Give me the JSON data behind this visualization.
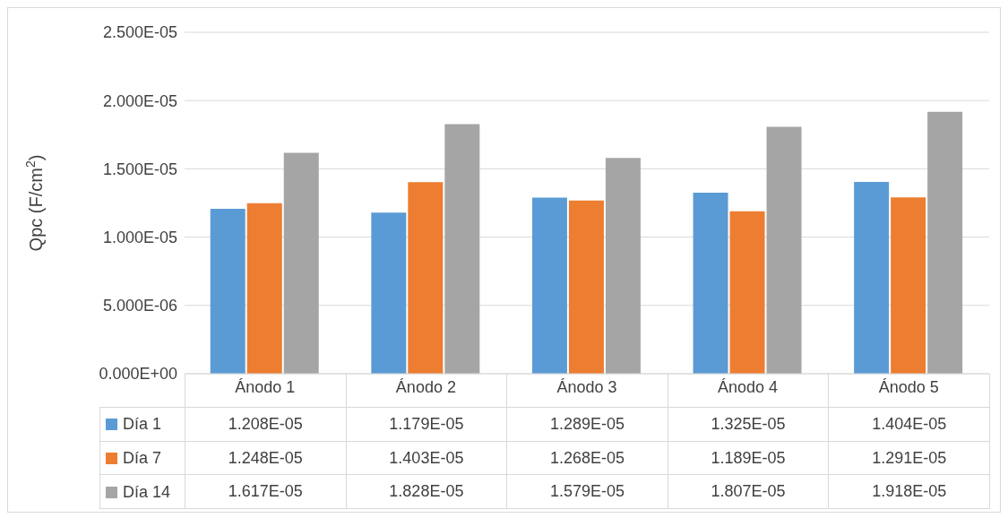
{
  "chart_data": {
    "type": "bar",
    "ylabel": "Qpc (F/cm$^{2}$)",
    "categories": [
      "Ánodo 1",
      "Ánodo 2",
      "Ánodo 3",
      "Ánodo 4",
      "Ánodo 5"
    ],
    "series": [
      {
        "name": "Día 1",
        "color": "#5b9bd5",
        "values": [
          1.208e-05,
          1.179e-05,
          1.289e-05,
          1.325e-05,
          1.404e-05
        ],
        "value_labels": [
          "1.208E-05",
          "1.179E-05",
          "1.289E-05",
          "1.325E-05",
          "1.404E-05"
        ]
      },
      {
        "name": "Día 7",
        "color": "#ed7d31",
        "values": [
          1.248e-05,
          1.403e-05,
          1.268e-05,
          1.189e-05,
          1.291e-05
        ],
        "value_labels": [
          "1.248E-05",
          "1.403E-05",
          "1.268E-05",
          "1.189E-05",
          "1.291E-05"
        ]
      },
      {
        "name": "Día 14",
        "color": "#a5a5a5",
        "values": [
          1.617e-05,
          1.828e-05,
          1.579e-05,
          1.807e-05,
          1.918e-05
        ],
        "value_labels": [
          "1.617E-05",
          "1.828E-05",
          "1.579E-05",
          "1.807E-05",
          "1.918E-05"
        ]
      }
    ],
    "ylim": [
      0,
      2.5e-05
    ],
    "yticks": [
      {
        "value": 0,
        "label": "0.000E+00"
      },
      {
        "value": 5e-06,
        "label": "5.000E-06"
      },
      {
        "value": 1e-05,
        "label": "1.000E-05"
      },
      {
        "value": 1.5e-05,
        "label": "1.500E-05"
      },
      {
        "value": 2e-05,
        "label": "2.000E-05"
      },
      {
        "value": 2.5e-05,
        "label": "2.500E-05"
      }
    ],
    "grid": "y",
    "legend": "bottom"
  }
}
